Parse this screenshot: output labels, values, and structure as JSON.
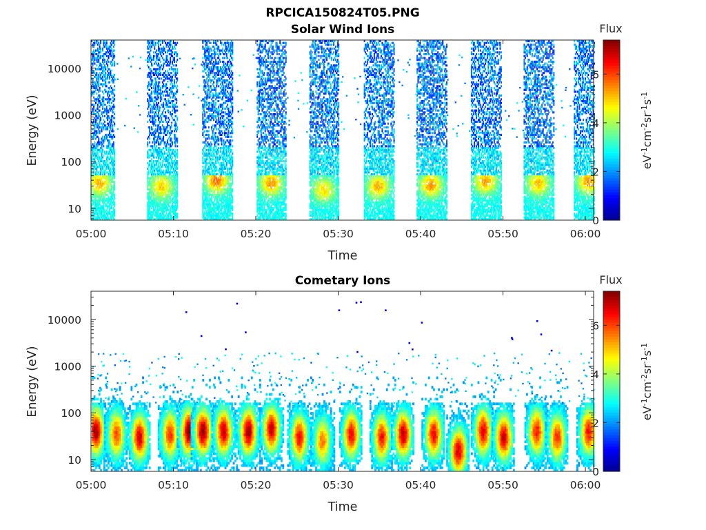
{
  "figure_title": "RPCICA150824T05.PNG",
  "colormap": [
    "#00008f",
    "#0000ff",
    "#0080ff",
    "#00ffff",
    "#80ff80",
    "#ffff00",
    "#ff8000",
    "#ff0000",
    "#800000"
  ],
  "chart_data": [
    {
      "type": "heatmap",
      "title": "Solar Wind Ions",
      "xlabel": "Time",
      "ylabel": "Energy (eV)",
      "xticks": [
        "05:00",
        "05:10",
        "05:20",
        "05:30",
        "05:40",
        "05:50",
        "06:00"
      ],
      "xlim": [
        "05:00",
        "06:01"
      ],
      "yscale": "log",
      "yticks": [
        "10",
        "100",
        "1000",
        "10000"
      ],
      "ylim": [
        5.6,
        40000
      ],
      "colorbar": {
        "title": "Flux",
        "label": "eV⁻¹cm⁻²sr⁻¹s⁻¹",
        "ticks": [
          "0",
          "2",
          "4",
          "6"
        ],
        "range": [
          0,
          7.4
        ]
      },
      "scans": [
        {
          "t": 1.0,
          "peak_energy": 35,
          "peak_flux": 5.0
        },
        {
          "t": 8.5,
          "peak_energy": 30,
          "peak_flux": 4.8
        },
        {
          "t": 15.2,
          "peak_energy": 40,
          "peak_flux": 5.5
        },
        {
          "t": 21.8,
          "peak_energy": 35,
          "peak_flux": 5.2
        },
        {
          "t": 28.2,
          "peak_energy": 25,
          "peak_flux": 4.6
        },
        {
          "t": 34.8,
          "peak_energy": 30,
          "peak_flux": 5.0
        },
        {
          "t": 41.2,
          "peak_energy": 32,
          "peak_flux": 5.2
        },
        {
          "t": 47.8,
          "peak_energy": 38,
          "peak_flux": 5.1
        },
        {
          "t": 54.2,
          "peak_energy": 35,
          "peak_flux": 4.9
        },
        {
          "t": 60.3,
          "peak_energy": 38,
          "peak_flux": 5.2
        }
      ]
    },
    {
      "type": "heatmap",
      "title": "Cometary Ions",
      "xlabel": "Time",
      "ylabel": "Energy (eV)",
      "xticks": [
        "05:00",
        "05:10",
        "05:20",
        "05:30",
        "05:40",
        "05:50",
        "06:00"
      ],
      "xlim": [
        "05:00",
        "06:01"
      ],
      "yscale": "log",
      "yticks": [
        "10",
        "100",
        "1000",
        "10000"
      ],
      "ylim": [
        5.6,
        40000
      ],
      "colorbar": {
        "title": "Flux",
        "label": "eV⁻¹cm⁻²sr⁻¹s⁻¹",
        "ticks": [
          "0",
          "2",
          "4",
          "6"
        ],
        "range": [
          0,
          7.4
        ]
      },
      "bursts": [
        {
          "t": 0.5,
          "peak_energy": 40,
          "peak_flux": 7.2
        },
        {
          "t": 3.0,
          "peak_energy": 35,
          "peak_flux": 6.0
        },
        {
          "t": 5.8,
          "peak_energy": 30,
          "peak_flux": 6.8
        },
        {
          "t": 9.5,
          "peak_energy": 35,
          "peak_flux": 6.2
        },
        {
          "t": 11.8,
          "peak_energy": 40,
          "peak_flux": 7.4
        },
        {
          "t": 13.5,
          "peak_energy": 40,
          "peak_flux": 7.3
        },
        {
          "t": 16.0,
          "peak_energy": 40,
          "peak_flux": 6.9
        },
        {
          "t": 19.0,
          "peak_energy": 40,
          "peak_flux": 7.2
        },
        {
          "t": 21.8,
          "peak_energy": 45,
          "peak_flux": 6.9
        },
        {
          "t": 25.2,
          "peak_energy": 30,
          "peak_flux": 6.5
        },
        {
          "t": 28.0,
          "peak_energy": 25,
          "peak_flux": 5.6
        },
        {
          "t": 31.5,
          "peak_energy": 35,
          "peak_flux": 6.6
        },
        {
          "t": 35.2,
          "peak_energy": 30,
          "peak_flux": 6.4
        },
        {
          "t": 37.8,
          "peak_energy": 35,
          "peak_flux": 7.0
        },
        {
          "t": 41.5,
          "peak_energy": 35,
          "peak_flux": 6.6
        },
        {
          "t": 44.5,
          "peak_energy": 15,
          "peak_flux": 6.8
        },
        {
          "t": 47.5,
          "peak_energy": 40,
          "peak_flux": 6.7
        },
        {
          "t": 50.0,
          "peak_energy": 30,
          "peak_flux": 6.9
        },
        {
          "t": 54.0,
          "peak_energy": 40,
          "peak_flux": 6.4
        },
        {
          "t": 56.5,
          "peak_energy": 30,
          "peak_flux": 6.2
        },
        {
          "t": 60.3,
          "peak_energy": 40,
          "peak_flux": 6.5
        }
      ]
    }
  ]
}
